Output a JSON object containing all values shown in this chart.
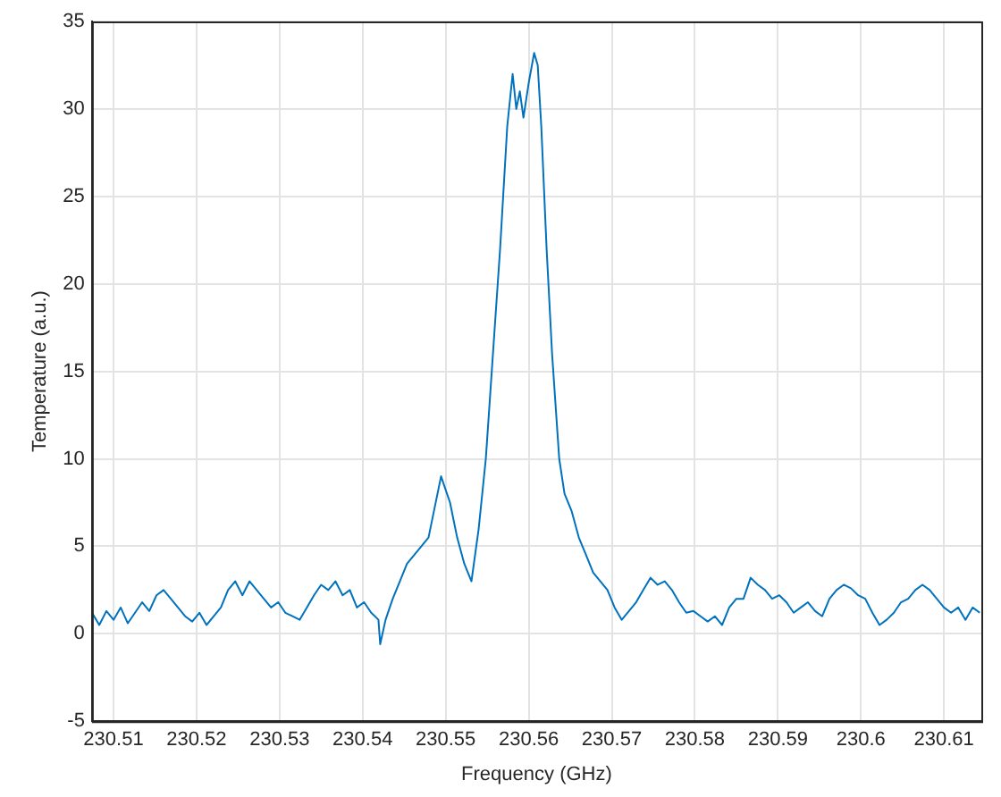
{
  "chart_data": {
    "type": "line",
    "xlabel": "Frequency (GHz)",
    "ylabel": "Temperature (a.u.)",
    "xlim": [
      230.5074,
      230.6145
    ],
    "xticks": [
      230.51,
      230.52,
      230.53,
      230.54,
      230.55,
      230.56,
      230.57,
      230.58,
      230.59,
      230.6,
      230.61
    ],
    "ylim": [
      -5,
      35
    ],
    "yticks": [
      -5,
      0,
      5,
      10,
      15,
      20,
      25,
      30,
      35
    ],
    "grid": true,
    "marker": "none",
    "line_style": "solid",
    "series": [
      {
        "color": "#0072bd",
        "x": [
          230.50741,
          230.50828,
          230.50914,
          230.51,
          230.51086,
          230.51172,
          230.51259,
          230.51345,
          230.51431,
          230.51517,
          230.51603,
          230.5169,
          230.51776,
          230.51862,
          230.51948,
          230.52034,
          230.5212,
          230.52207,
          230.52293,
          230.52379,
          230.52465,
          230.52552,
          230.52638,
          230.52724,
          230.5281,
          230.52897,
          230.52983,
          230.53069,
          230.53155,
          230.53241,
          230.53328,
          230.53414,
          230.535,
          230.53586,
          230.53672,
          230.53759,
          230.53845,
          230.53931,
          230.54017,
          230.54103,
          230.5419,
          230.54211,
          230.54276,
          230.54362,
          230.54448,
          230.54534,
          230.54621,
          230.54707,
          230.54793,
          230.54944,
          230.55052,
          230.55138,
          230.55224,
          230.5531,
          230.55397,
          230.55483,
          230.55569,
          230.55655,
          230.55741,
          230.55806,
          230.5585,
          230.55893,
          230.55936,
          230.56,
          230.56065,
          230.56108,
          230.56151,
          230.56215,
          230.56281,
          230.56367,
          230.56431,
          230.56517,
          230.56603,
          230.5669,
          230.56776,
          230.56862,
          230.56948,
          230.57034,
          230.5712,
          230.57207,
          230.57293,
          230.57379,
          230.57466,
          230.57552,
          230.57638,
          230.57724,
          230.5781,
          230.57897,
          230.57983,
          230.58069,
          230.58155,
          230.58241,
          230.58328,
          230.58414,
          230.585,
          230.58586,
          230.58672,
          230.58759,
          230.58845,
          230.58931,
          230.59017,
          230.59103,
          230.5919,
          230.59276,
          230.59362,
          230.59448,
          230.59534,
          230.59621,
          230.59707,
          230.59793,
          230.59879,
          230.59966,
          230.60052,
          230.60138,
          230.60224,
          230.6031,
          230.60397,
          230.60483,
          230.60569,
          230.60655,
          230.60741,
          230.60828,
          230.60914,
          230.61,
          230.61086,
          230.61172,
          230.61259,
          230.61345,
          230.61431
        ],
        "values": [
          1.2,
          0.5,
          1.3,
          0.8,
          1.5,
          0.6,
          1.2,
          1.8,
          1.3,
          2.2,
          2.5,
          2,
          1.5,
          1,
          0.7,
          1.2,
          0.5,
          1,
          1.5,
          2.5,
          3,
          2.2,
          3,
          2.5,
          2,
          1.5,
          1.8,
          1.2,
          1,
          0.8,
          1.5,
          2.2,
          2.8,
          2.5,
          3,
          2.2,
          2.5,
          1.5,
          1.8,
          1.2,
          0.8,
          -0.6,
          0.8,
          2,
          3,
          4,
          4.5,
          5,
          5.5,
          9,
          7.5,
          5.5,
          4,
          3,
          6,
          10,
          16,
          22,
          29,
          32,
          30,
          31,
          29.5,
          31.5,
          33.2,
          32.5,
          29,
          22,
          16,
          10,
          8,
          7,
          5.5,
          4.5,
          3.5,
          3,
          2.5,
          1.5,
          0.8,
          1.3,
          1.8,
          2.5,
          3.2,
          2.8,
          3,
          2.5,
          1.8,
          1.2,
          1.3,
          1,
          0.7,
          1,
          0.5,
          1.5,
          2,
          2,
          3.2,
          2.8,
          2.5,
          2,
          2.2,
          1.8,
          1.2,
          1.5,
          1.8,
          1.3,
          1,
          2,
          2.5,
          2.8,
          2.6,
          2.2,
          2,
          1.2,
          0.5,
          0.8,
          1.2,
          1.8,
          2,
          2.5,
          2.8,
          2.5,
          2,
          1.5,
          1.2,
          1.5,
          0.8,
          1.5,
          1.2
        ]
      }
    ]
  }
}
